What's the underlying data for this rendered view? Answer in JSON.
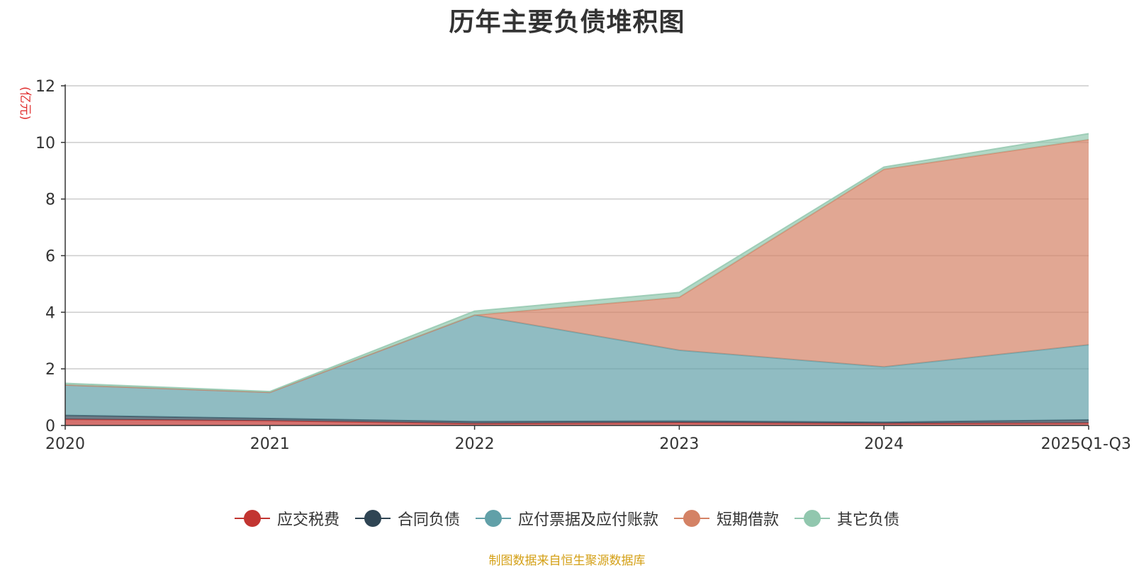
{
  "title": "历年主要负债堆积图",
  "unit_label": "(亿元)",
  "source_text": "制图数据来自恒生聚源数据库",
  "chart_data": {
    "type": "area",
    "stacked": true,
    "title": "历年主要负债堆积图",
    "ylabel": "(亿元)",
    "ylim": [
      0,
      12
    ],
    "yticks": [
      0,
      2,
      4,
      6,
      8,
      10,
      12
    ],
    "categories": [
      "2020",
      "2021",
      "2022",
      "2023",
      "2024",
      "2025Q1-Q3"
    ],
    "series": [
      {
        "name": "应交税费",
        "color": "#c23531",
        "values": [
          0.22,
          0.17,
          0.07,
          0.1,
          0.07,
          0.09
        ]
      },
      {
        "name": "合同负债",
        "color": "#2f4554",
        "values": [
          0.14,
          0.08,
          0.07,
          0.06,
          0.05,
          0.11
        ]
      },
      {
        "name": "应付票据及应付账款",
        "color": "#61a0a8",
        "values": [
          1.07,
          0.92,
          3.76,
          2.5,
          1.95,
          2.65
        ]
      },
      {
        "name": "短期借款",
        "color": "#d48265",
        "values": [
          0.0,
          0.0,
          0.0,
          1.87,
          6.98,
          7.25
        ]
      },
      {
        "name": "其它负债",
        "color": "#91c7ae",
        "values": [
          0.06,
          0.03,
          0.14,
          0.17,
          0.08,
          0.21
        ]
      }
    ],
    "legend_position": "bottom"
  }
}
